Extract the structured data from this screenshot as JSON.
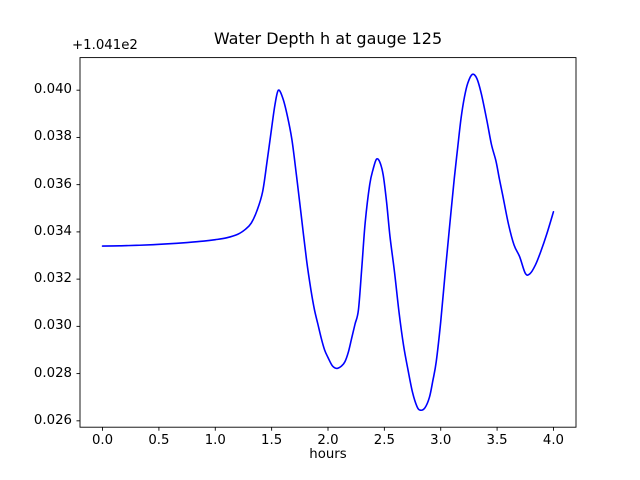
{
  "chart_data": {
    "type": "line",
    "title": "Water Depth h at gauge 125",
    "xlabel": "hours",
    "ylabel": "",
    "y_axis_offset_text": "+1.041e2",
    "background_color": "#ffffff",
    "frame_color": "#000000",
    "grid": false,
    "legend": null,
    "xlim": [
      -0.2,
      4.2
    ],
    "ylim": [
      0.02573,
      0.04138
    ],
    "x_ticks": {
      "values": [
        0.0,
        0.5,
        1.0,
        1.5,
        2.0,
        2.5,
        3.0,
        3.5,
        4.0
      ],
      "labels": [
        "0.0",
        "0.5",
        "1.0",
        "1.5",
        "2.0",
        "2.5",
        "3.0",
        "3.5",
        "4.0"
      ]
    },
    "y_ticks": {
      "values": [
        0.026,
        0.028,
        0.03,
        0.032,
        0.034,
        0.036,
        0.038,
        0.04
      ],
      "labels": [
        "0.026",
        "0.028",
        "0.030",
        "0.032",
        "0.034",
        "0.036",
        "0.038",
        "0.040"
      ]
    },
    "series": [
      {
        "name": "water depth h at gauge 125",
        "color": "#0000ff",
        "line_width": 1.6,
        "points": [
          [
            0.0,
            0.0334
          ],
          [
            0.15,
            0.03341
          ],
          [
            0.3,
            0.03343
          ],
          [
            0.45,
            0.03346
          ],
          [
            0.6,
            0.0335
          ],
          [
            0.75,
            0.03355
          ],
          [
            0.9,
            0.03361
          ],
          [
            1.0,
            0.03367
          ],
          [
            1.1,
            0.03375
          ],
          [
            1.2,
            0.0339
          ],
          [
            1.27,
            0.03412
          ],
          [
            1.32,
            0.03438
          ],
          [
            1.37,
            0.0349
          ],
          [
            1.42,
            0.0357
          ],
          [
            1.46,
            0.037
          ],
          [
            1.5,
            0.0384
          ],
          [
            1.53,
            0.0394
          ],
          [
            1.56,
            0.04
          ],
          [
            1.6,
            0.03965
          ],
          [
            1.64,
            0.0389
          ],
          [
            1.68,
            0.0379
          ],
          [
            1.72,
            0.0364
          ],
          [
            1.76,
            0.0348
          ],
          [
            1.81,
            0.0328
          ],
          [
            1.85,
            0.0315
          ],
          [
            1.88,
            0.0307
          ],
          [
            1.91,
            0.0301
          ],
          [
            1.94,
            0.0295
          ],
          [
            1.97,
            0.029
          ],
          [
            2.0,
            0.02868
          ],
          [
            2.04,
            0.02832
          ],
          [
            2.08,
            0.02822
          ],
          [
            2.12,
            0.02832
          ],
          [
            2.15,
            0.0285
          ],
          [
            2.18,
            0.0289
          ],
          [
            2.21,
            0.0295
          ],
          [
            2.24,
            0.0301
          ],
          [
            2.27,
            0.0307
          ],
          [
            2.3,
            0.0325
          ],
          [
            2.33,
            0.0344
          ],
          [
            2.37,
            0.036
          ],
          [
            2.4,
            0.03665
          ],
          [
            2.43,
            0.03708
          ],
          [
            2.46,
            0.03695
          ],
          [
            2.49,
            0.0364
          ],
          [
            2.52,
            0.03525
          ],
          [
            2.55,
            0.0338
          ],
          [
            2.59,
            0.0323
          ],
          [
            2.63,
            0.0306
          ],
          [
            2.67,
            0.0292
          ],
          [
            2.71,
            0.02815
          ],
          [
            2.75,
            0.0272
          ],
          [
            2.79,
            0.0266
          ],
          [
            2.82,
            0.02645
          ],
          [
            2.86,
            0.02655
          ],
          [
            2.9,
            0.027
          ],
          [
            2.93,
            0.0277
          ],
          [
            2.96,
            0.0285
          ],
          [
            3.0,
            0.0302
          ],
          [
            3.04,
            0.0323
          ],
          [
            3.08,
            0.0343
          ],
          [
            3.12,
            0.03625
          ],
          [
            3.15,
            0.03755
          ],
          [
            3.18,
            0.0388
          ],
          [
            3.21,
            0.0397
          ],
          [
            3.24,
            0.0403
          ],
          [
            3.28,
            0.04067
          ],
          [
            3.32,
            0.0405
          ],
          [
            3.36,
            0.03985
          ],
          [
            3.41,
            0.0387
          ],
          [
            3.45,
            0.0377
          ],
          [
            3.49,
            0.037
          ],
          [
            3.52,
            0.03625
          ],
          [
            3.55,
            0.03555
          ],
          [
            3.6,
            0.03435
          ],
          [
            3.65,
            0.03345
          ],
          [
            3.7,
            0.03295
          ],
          [
            3.75,
            0.03225
          ],
          [
            3.79,
            0.03222
          ],
          [
            3.84,
            0.0326
          ],
          [
            3.89,
            0.0332
          ],
          [
            3.94,
            0.0339
          ],
          [
            4.0,
            0.03485
          ]
        ]
      }
    ]
  }
}
